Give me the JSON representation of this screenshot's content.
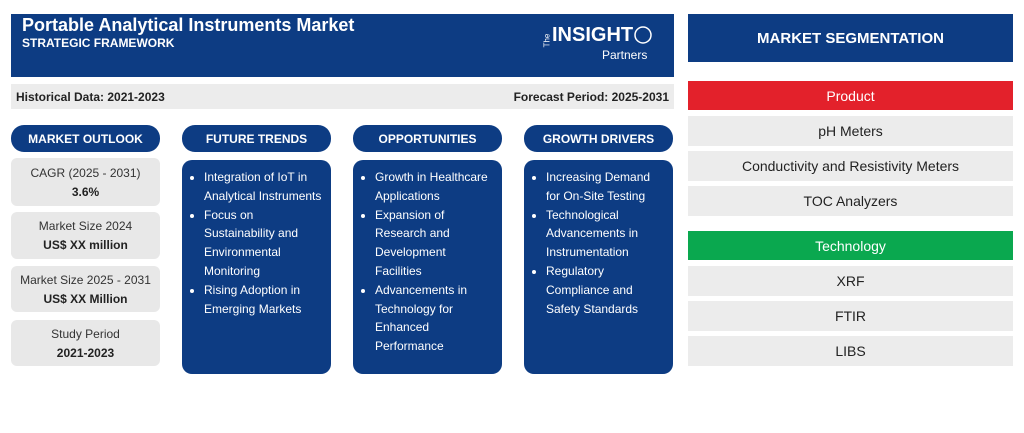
{
  "header": {
    "title": "Portable Analytical Instruments Market",
    "subtitle": "STRATEGIC FRAMEWORK",
    "logo": {
      "small": "The",
      "main": "INSIGHT",
      "sub": "Partners"
    }
  },
  "period_bar": {
    "historical": "Historical Data: 2021-2023",
    "forecast": "Forecast Period: 2025-2031"
  },
  "market_outlook": {
    "heading": "MARKET OUTLOOK",
    "cards": [
      {
        "label": "CAGR (2025 - 2031)",
        "value": "3.6%"
      },
      {
        "label": "Market Size 2024",
        "value": "US$ XX million"
      },
      {
        "label": "Market Size 2025 - 2031",
        "value": "US$ XX Million"
      },
      {
        "label": "Study Period",
        "value": "2021-2023"
      }
    ]
  },
  "columns": [
    {
      "heading": "FUTURE TRENDS",
      "items": [
        "Integration of IoT in Analytical Instruments",
        "Focus on Sustainability and Environmental Monitoring",
        "Rising Adoption in Emerging Markets"
      ]
    },
    {
      "heading": "OPPORTUNITIES",
      "items": [
        "Growth in Healthcare Applications",
        "Expansion of Research and Development Facilities",
        "Advancements in Technology for Enhanced Performance"
      ]
    },
    {
      "heading": "GROWTH DRIVERS",
      "items": [
        "Increasing Demand for On-Site Testing",
        "Technological Advancements in Instrumentation",
        "Regulatory Compliance and Safety Standards"
      ]
    }
  ],
  "segmentation": {
    "heading": "MARKET SEGMENTATION",
    "groups": [
      {
        "name": "Product",
        "items": [
          "pH Meters",
          "Conductivity and Resistivity Meters",
          "TOC Analyzers"
        ]
      },
      {
        "name": "Technology",
        "items": [
          "XRF",
          "FTIR",
          "LIBS"
        ]
      }
    ]
  }
}
